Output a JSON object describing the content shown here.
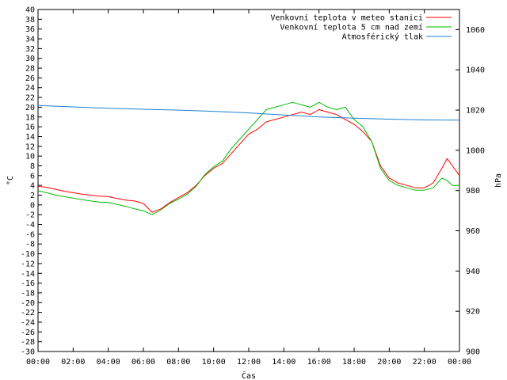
{
  "chart_data": {
    "type": "line",
    "title": "",
    "xlabel": "Čas",
    "ylabel": "°C",
    "y2label": "hPa",
    "x_ticks": [
      "00:00",
      "02:00",
      "04:00",
      "06:00",
      "08:00",
      "10:00",
      "12:00",
      "14:00",
      "16:00",
      "18:00",
      "20:00",
      "22:00",
      "00:00"
    ],
    "x_range_hours": [
      0,
      24
    ],
    "ylim": [
      -30,
      40
    ],
    "y_ticks": [
      -30,
      -28,
      -26,
      -24,
      -22,
      -20,
      -18,
      -16,
      -14,
      -12,
      -10,
      -8,
      -6,
      -4,
      -2,
      0,
      2,
      4,
      6,
      8,
      10,
      12,
      14,
      16,
      18,
      20,
      22,
      24,
      26,
      28,
      30,
      32,
      34,
      36,
      38,
      40
    ],
    "y2lim": [
      900,
      1070
    ],
    "y2_ticks": [
      900,
      920,
      940,
      960,
      980,
      1000,
      1020,
      1040,
      1060
    ],
    "grid": false,
    "legend_position": "top-right",
    "series": [
      {
        "name": "Venkovní teplota v meteo stanici",
        "axis": "left",
        "color": "#ff0000",
        "x": [
          0,
          0.5,
          1,
          1.5,
          2,
          2.5,
          3,
          3.5,
          4,
          4.5,
          5,
          5.5,
          6,
          6.5,
          7,
          7.5,
          8,
          8.5,
          9,
          9.5,
          10,
          10.5,
          11,
          11.5,
          12,
          12.5,
          13,
          13.5,
          14,
          14.5,
          15,
          15.5,
          16,
          16.5,
          17,
          17.5,
          18,
          18.5,
          19,
          19.5,
          20,
          20.5,
          21,
          21.5,
          22,
          22.5,
          23,
          23.3,
          23.6,
          24
        ],
        "values": [
          3.8,
          3.6,
          3.2,
          2.8,
          2.5,
          2.2,
          2.0,
          1.8,
          1.7,
          1.3,
          1.0,
          0.8,
          0.3,
          -1.5,
          -0.8,
          0.5,
          1.5,
          2.5,
          4.0,
          6.0,
          7.5,
          8.5,
          10.5,
          12.5,
          14.5,
          15.5,
          17.0,
          17.5,
          18.0,
          18.5,
          19.0,
          18.5,
          19.5,
          19.0,
          18.5,
          17.5,
          16.5,
          15.0,
          13.0,
          8.0,
          5.5,
          4.5,
          4.0,
          3.5,
          3.5,
          4.5,
          7.5,
          9.5,
          8.0,
          6.0
        ]
      },
      {
        "name": "Venkovní teplota 5 cm nad zemí",
        "axis": "left",
        "color": "#00bb00",
        "x": [
          0,
          0.5,
          1,
          1.5,
          2,
          2.5,
          3,
          3.5,
          4,
          4.5,
          5,
          5.5,
          6,
          6.5,
          7,
          7.5,
          8,
          8.5,
          9,
          9.5,
          10,
          10.5,
          11,
          11.5,
          12,
          12.5,
          13,
          13.5,
          14,
          14.5,
          15,
          15.5,
          16,
          16.5,
          17,
          17.5,
          18,
          18.5,
          19,
          19.5,
          20,
          20.5,
          21,
          21.5,
          22,
          22.5,
          23,
          23.3,
          23.6,
          24
        ],
        "values": [
          2.9,
          2.5,
          2.0,
          1.7,
          1.4,
          1.1,
          0.8,
          0.6,
          0.5,
          0.1,
          -0.3,
          -0.8,
          -1.2,
          -2.0,
          -1.0,
          0.3,
          1.2,
          2.2,
          3.8,
          6.2,
          7.8,
          9.0,
          11.5,
          13.5,
          15.5,
          17.5,
          19.5,
          20.0,
          20.5,
          21.0,
          20.5,
          20.0,
          21.0,
          20.0,
          19.5,
          20.0,
          17.5,
          16.0,
          13.0,
          7.5,
          5.0,
          4.0,
          3.5,
          3.0,
          3.0,
          3.5,
          5.5,
          5.0,
          4.0,
          4.0
        ]
      },
      {
        "name": "Atmosférický tlak",
        "axis": "right",
        "color": "#1f7fd0",
        "x": [
          0,
          2,
          4,
          6,
          8,
          10,
          12,
          14,
          16,
          18,
          20,
          22,
          24
        ],
        "values": [
          1022.3,
          1021.6,
          1020.9,
          1020.4,
          1020.0,
          1019.4,
          1018.6,
          1017.6,
          1016.6,
          1016.0,
          1015.5,
          1015.1,
          1015.0
        ]
      }
    ]
  }
}
